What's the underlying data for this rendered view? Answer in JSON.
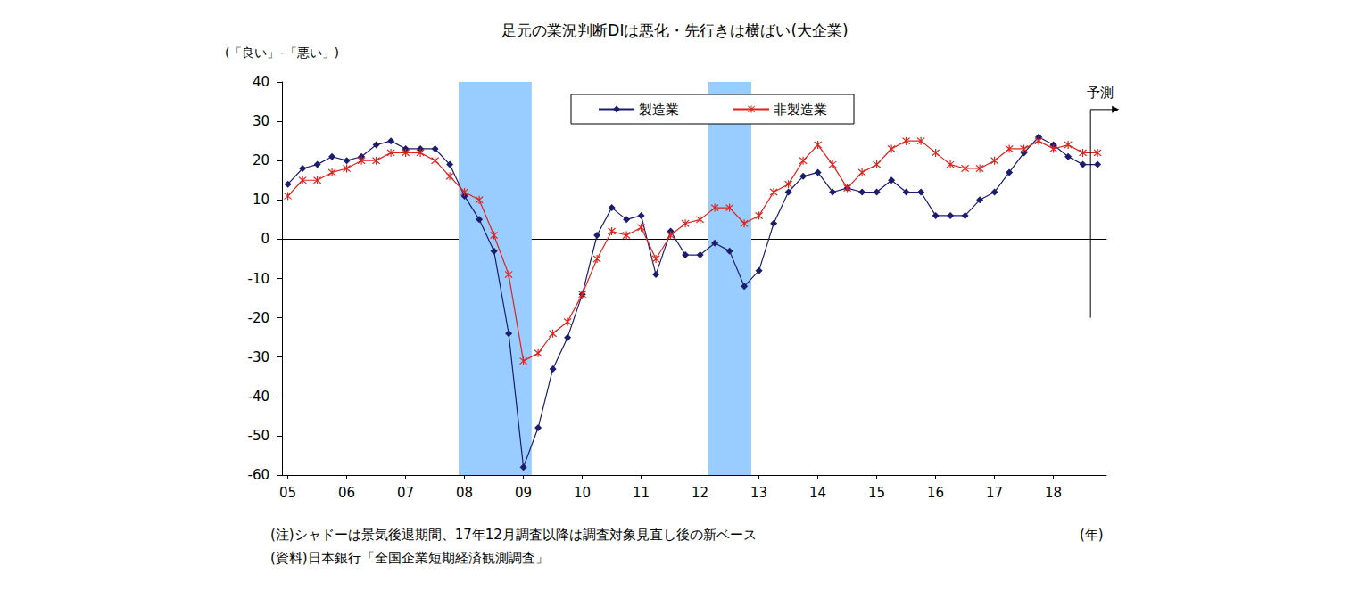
{
  "chart_data": {
    "type": "line",
    "title": "足元の業況判断DIは悪化・先行きは横ばい(大企業)",
    "ylabel": "(「良い」-「悪い」)",
    "xlabel": "(年)",
    "notes": [
      "(注)シャドーは景気後退期間、17年12月調査以降は調査対象見直し後の新ベース",
      "(資料)日本銀行「全国企業短期経済観測調査」"
    ],
    "x": [
      2005,
      2005.25,
      2005.5,
      2005.75,
      2006,
      2006.25,
      2006.5,
      2006.75,
      2007,
      2007.25,
      2007.5,
      2007.75,
      2008,
      2008.25,
      2008.5,
      2008.75,
      2009,
      2009.25,
      2009.5,
      2009.75,
      2010,
      2010.25,
      2010.5,
      2010.75,
      2011,
      2011.25,
      2011.5,
      2011.75,
      2012,
      2012.25,
      2012.5,
      2012.75,
      2013,
      2013.25,
      2013.5,
      2013.75,
      2014,
      2014.25,
      2014.5,
      2014.75,
      2015,
      2015.25,
      2015.5,
      2015.75,
      2016,
      2016.25,
      2016.5,
      2016.75,
      2017,
      2017.25,
      2017.5,
      2017.75,
      2018,
      2018.25,
      2018.5,
      2018.75
    ],
    "series": [
      {
        "name": "製造業",
        "color": "#1c1c6e",
        "marker": "diamond",
        "line_style": "solid",
        "values": [
          14,
          18,
          19,
          21,
          20,
          21,
          24,
          25,
          23,
          23,
          23,
          19,
          11,
          5,
          -3,
          -24,
          -58,
          -48,
          -33,
          -25,
          -14,
          1,
          8,
          5,
          6,
          -9,
          2,
          -4,
          -4,
          -1,
          -3,
          -12,
          -8,
          4,
          12,
          16,
          17,
          12,
          13,
          12,
          12,
          15,
          12,
          12,
          6,
          6,
          6,
          10,
          12,
          17,
          22,
          26,
          24,
          21,
          19,
          19
        ]
      },
      {
        "name": "非製造業",
        "color": "#e0201b",
        "marker": "asterisk",
        "line_style": "solid",
        "values": [
          11,
          15,
          15,
          17,
          18,
          20,
          20,
          22,
          22,
          22,
          20,
          16,
          12,
          10,
          1,
          -9,
          -31,
          -29,
          -24,
          -21,
          -14,
          -5,
          2,
          1,
          3,
          -5,
          1,
          4,
          5,
          8,
          8,
          4,
          6,
          12,
          14,
          20,
          24,
          19,
          13,
          17,
          19,
          23,
          25,
          25,
          22,
          19,
          18,
          18,
          20,
          23,
          23,
          25,
          23,
          24,
          22,
          22
        ]
      }
    ],
    "shaded_periods": [
      [
        2007.9,
        2009.14
      ],
      [
        2012.14,
        2012.87
      ]
    ],
    "annotations": [
      {
        "text": "予測",
        "x": 2018.63
      }
    ],
    "xlim": [
      2004.9,
      2018.9
    ],
    "xticks": [
      {
        "value": 2005,
        "label": "05"
      },
      {
        "value": 2006,
        "label": "06"
      },
      {
        "value": 2007,
        "label": "07"
      },
      {
        "value": 2008,
        "label": "08"
      },
      {
        "value": 2009,
        "label": "09"
      },
      {
        "value": 2010,
        "label": "10"
      },
      {
        "value": 2011,
        "label": "11"
      },
      {
        "value": 2012,
        "label": "12"
      },
      {
        "value": 2013,
        "label": "13"
      },
      {
        "value": 2014,
        "label": "14"
      },
      {
        "value": 2015,
        "label": "15"
      },
      {
        "value": 2016,
        "label": "16"
      },
      {
        "value": 2017,
        "label": "17"
      },
      {
        "value": 2018,
        "label": "18"
      }
    ],
    "ylim": [
      -60,
      40
    ],
    "yticks": [
      -60,
      -50,
      -40,
      -30,
      -20,
      -10,
      0,
      10,
      20,
      30,
      40
    ],
    "grid": false,
    "legend": "top"
  }
}
